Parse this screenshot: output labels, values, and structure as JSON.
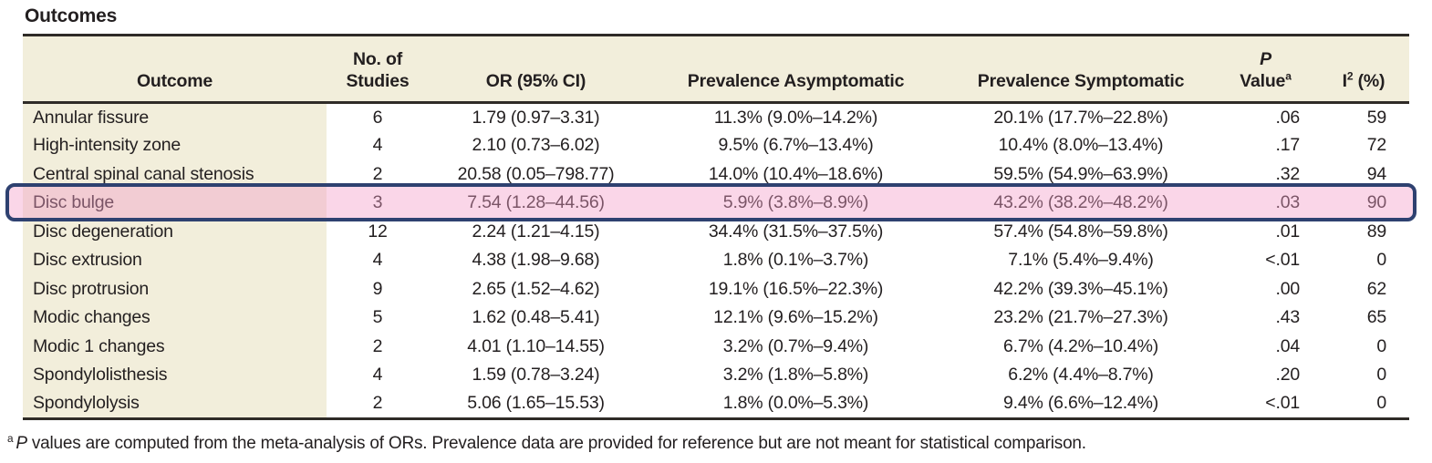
{
  "title": "Outcomes",
  "colors": {
    "header_bg": "#f2eedb",
    "rule": "#2f2b27",
    "text": "#231f20",
    "highlight_fill": "rgba(244,157,200,0.42)",
    "highlight_border": "#2e4170"
  },
  "table": {
    "header": {
      "outcome": "Outcome",
      "studies_line1": "No. of",
      "studies_line2": "Studies",
      "or_ci": "OR (95% CI)",
      "prev_asym": "Prevalence Asymptomatic",
      "prev_sym": "Prevalence Symptomatic",
      "p_line1": "P",
      "p_line2": "Value",
      "p_sup": "a",
      "i2_base": "I",
      "i2_sup": "2",
      "i2_unit": "(%)"
    },
    "rows": [
      {
        "outcome": "Annular fissure",
        "studies": "6",
        "or": "1.79 (0.97–3.31)",
        "prev_asym": "11.3% (9.0%–14.2%)",
        "prev_sym": "20.1% (17.7%–22.8%)",
        "p": ".06",
        "i2": "59"
      },
      {
        "outcome": "High-intensity zone",
        "studies": "4",
        "or": "2.10 (0.73–6.02)",
        "prev_asym": "9.5% (6.7%–13.4%)",
        "prev_sym": "10.4% (8.0%–13.4%)",
        "p": ".17",
        "i2": "72"
      },
      {
        "outcome": "Central spinal canal stenosis",
        "studies": "2",
        "or": "20.58 (0.05–798.77)",
        "prev_asym": "14.0% (10.4%–18.6%)",
        "prev_sym": "59.5% (54.9%–63.9%)",
        "p": ".32",
        "i2": "94"
      },
      {
        "outcome": "Disc bulge",
        "studies": "3",
        "or": "7.54 (1.28–44.56)",
        "prev_asym": "5.9% (3.8%–8.9%)",
        "prev_sym": "43.2% (38.2%–48.2%)",
        "p": ".03",
        "i2": "90"
      },
      {
        "outcome": "Disc degeneration",
        "studies": "12",
        "or": "2.24 (1.21–4.15)",
        "prev_asym": "34.4% (31.5%–37.5%)",
        "prev_sym": "57.4% (54.8%–59.8%)",
        "p": ".01",
        "i2": "89"
      },
      {
        "outcome": "Disc extrusion",
        "studies": "4",
        "or": "4.38 (1.98–9.68)",
        "prev_asym": "1.8% (0.1%–3.7%)",
        "prev_sym": "7.1% (5.4%–9.4%)",
        "p": "<.01",
        "i2": "0"
      },
      {
        "outcome": "Disc protrusion",
        "studies": "9",
        "or": "2.65 (1.52–4.62)",
        "prev_asym": "19.1% (16.5%–22.3%)",
        "prev_sym": "42.2% (39.3%–45.1%)",
        "p": ".00",
        "i2": "62"
      },
      {
        "outcome": "Modic changes",
        "studies": "5",
        "or": "1.62 (0.48–5.41)",
        "prev_asym": "12.1% (9.6%–15.2%)",
        "prev_sym": "23.2% (21.7%–27.3%)",
        "p": ".43",
        "i2": "65"
      },
      {
        "outcome": "Modic 1 changes",
        "studies": "2",
        "or": "4.01 (1.10–14.55)",
        "prev_asym": "3.2% (0.7%–9.4%)",
        "prev_sym": "6.7% (4.2%–10.4%)",
        "p": ".04",
        "i2": "0"
      },
      {
        "outcome": "Spondylolisthesis",
        "studies": "4",
        "or": "1.59 (0.78–3.24)",
        "prev_asym": "3.2% (1.8%–5.8%)",
        "prev_sym": "6.2% (4.4%–8.7%)",
        "p": ".20",
        "i2": "0"
      },
      {
        "outcome": "Spondylolysis",
        "studies": "2",
        "or": "5.06 (1.65–15.53)",
        "prev_asym": "1.8% (0.0%–5.3%)",
        "prev_sym": "9.4% (6.6%–12.4%)",
        "p": "<.01",
        "i2": "0"
      }
    ]
  },
  "highlight": {
    "row_label": "Disc bulge",
    "row_index": 3
  },
  "footnote": {
    "sup": "a",
    "lead_italic": "P",
    "text": "values are computed from the meta-analysis of ORs. Prevalence data are provided for reference but are not meant for statistical comparison."
  }
}
